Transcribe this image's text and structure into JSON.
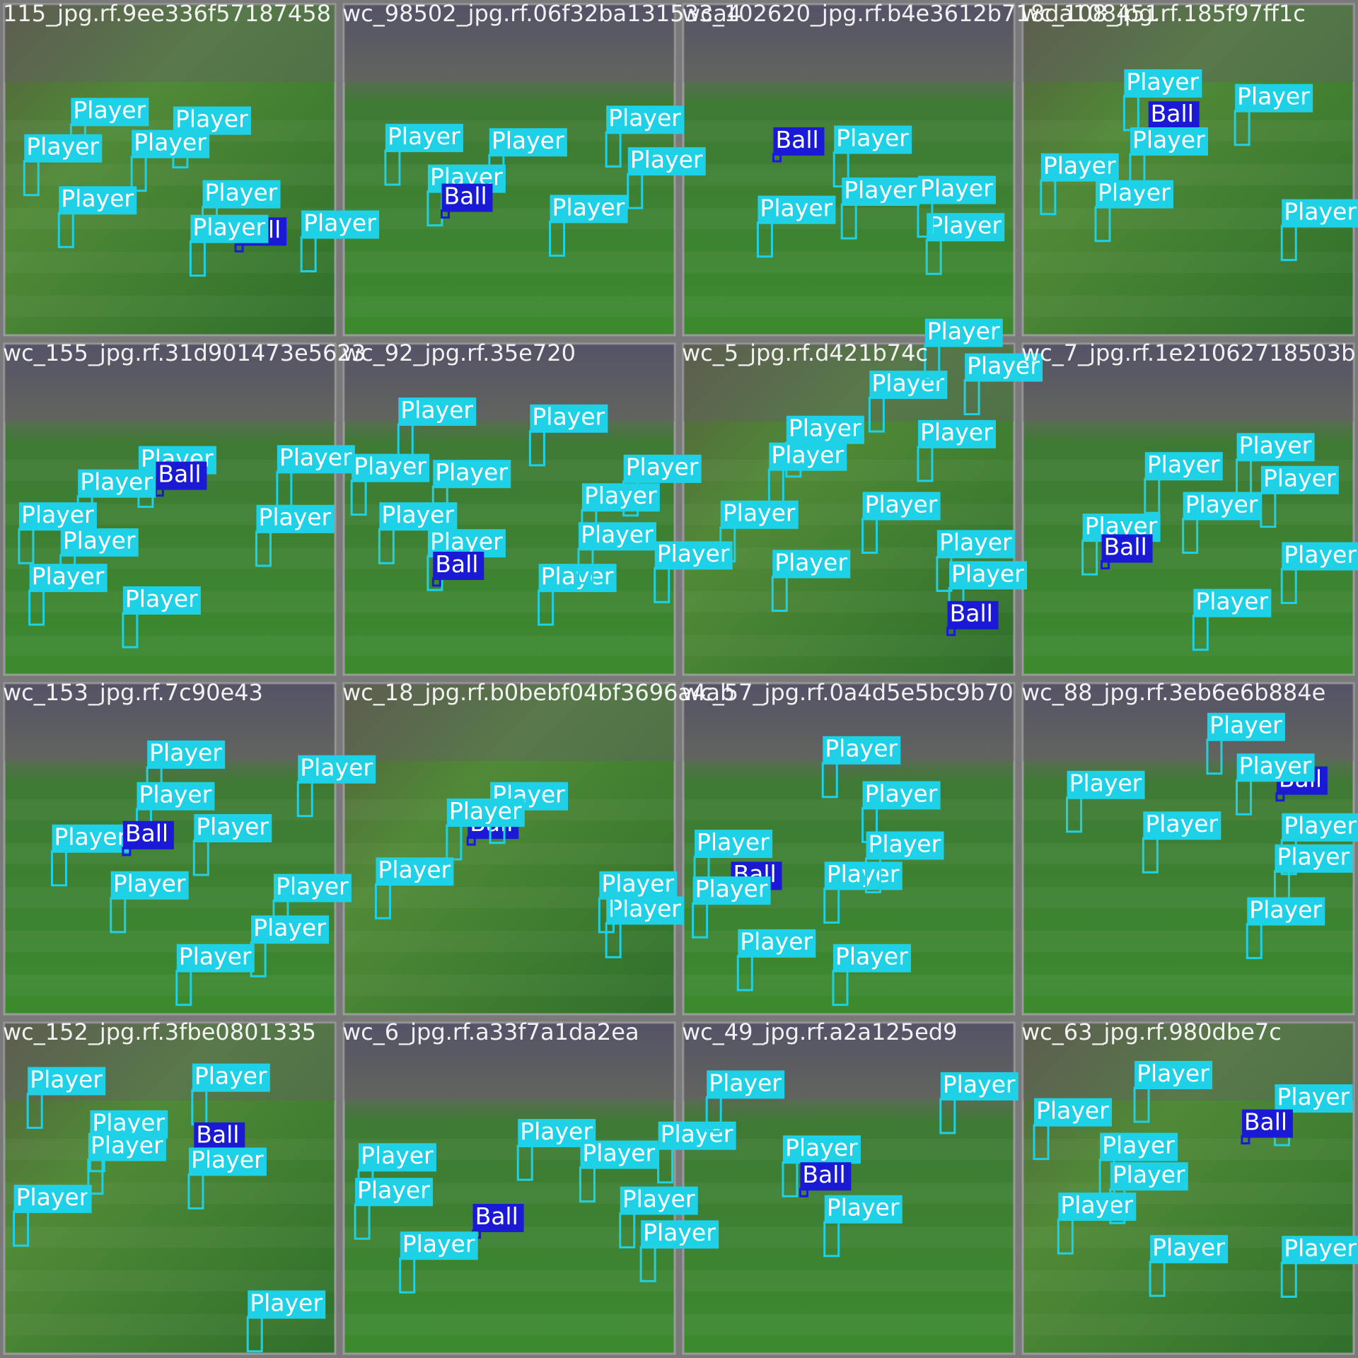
{
  "tiles": [
    {
      "filename": "115_jpg.rf.9ee336f57187458",
      "labels": [
        "Player",
        "Player",
        "Player",
        "Player",
        "Player",
        "Player",
        "Player",
        "Ball",
        "Player"
      ]
    },
    {
      "filename": "wc_98502_jpg.rf.06f32ba131533a4",
      "labels": [
        "Player",
        "Player",
        "Player",
        "Player",
        "Ball",
        "Player",
        "Player"
      ]
    },
    {
      "filename": "wc_102620_jpg.rf.b4e3612b718da108451",
      "labels": [
        "Player",
        "Ball",
        "Player",
        "Player",
        "Player",
        "Player"
      ]
    },
    {
      "filename": "wc_108_jpg.rf.185f97ff1c",
      "labels": [
        "Player",
        "Player",
        "Ball",
        "Player",
        "Player",
        "Player",
        "Player"
      ]
    },
    {
      "filename": "wc_155_jpg.rf.31d901473e5623",
      "labels": [
        "Player",
        "Ball",
        "Player",
        "Player",
        "Player",
        "Player",
        "Player",
        "Player",
        "Player"
      ]
    },
    {
      "filename": "wc_92_jpg.rf.35e720",
      "labels": [
        "Player",
        "Player",
        "Player",
        "Player",
        "Player",
        "Player",
        "Ball",
        "Player",
        "Player",
        "Player",
        "Player"
      ]
    },
    {
      "filename": "wc_5_jpg.rf.d421b74c",
      "labels": [
        "Player",
        "Player",
        "Player",
        "Player",
        "Player",
        "Player",
        "Player",
        "Player",
        "Player",
        "Ball",
        "Player",
        "Player",
        "Player"
      ]
    },
    {
      "filename": "wc_7_jpg.rf.1e21062718503b",
      "labels": [
        "Player",
        "Player",
        "Player",
        "Player",
        "Player",
        "Ball",
        "Player",
        "Player"
      ]
    },
    {
      "filename": "wc_153_jpg.rf.7c90e43",
      "labels": [
        "Player",
        "Player",
        "Player",
        "Ball",
        "Player",
        "Player",
        "Player",
        "Player",
        "Player",
        "Player"
      ]
    },
    {
      "filename": "wc_18_jpg.rf.b0bebf04bf3696a4ab",
      "labels": [
        "Player",
        "Ball",
        "Player",
        "Player",
        "Player",
        "Player"
      ]
    },
    {
      "filename": "wc_57_jpg.rf.0a4d5e5bc9b70",
      "labels": [
        "Player",
        "Player",
        "Player",
        "Player",
        "Player",
        "Ball",
        "Player",
        "Player",
        "Player"
      ]
    },
    {
      "filename": "wc_88_jpg.rf.3eb6e6b884e",
      "labels": [
        "Player",
        "Player",
        "Player",
        "Ball",
        "Player",
        "Player",
        "Player",
        "Player"
      ]
    },
    {
      "filename": "wc_152_jpg.rf.3fbe0801335",
      "labels": [
        "Player",
        "Player",
        "Player",
        "Ball",
        "Player",
        "Player",
        "Player",
        "Player"
      ]
    },
    {
      "filename": "wc_6_jpg.rf.a33f7a1da2ea",
      "labels": [
        "Player",
        "Player",
        "Player",
        "Player",
        "Ball",
        "Player",
        "Player",
        "Player",
        "Player"
      ]
    },
    {
      "filename": "wc_49_jpg.rf.a2a125ed9",
      "labels": [
        "Player",
        "Player",
        "Player",
        "Ball",
        "Player"
      ]
    },
    {
      "filename": "wc_63_jpg.rf.980dbe7c",
      "labels": [
        "Player",
        "Player",
        "Player",
        "Ball",
        "Player",
        "Player",
        "Player",
        "Player",
        "Player"
      ]
    }
  ]
}
